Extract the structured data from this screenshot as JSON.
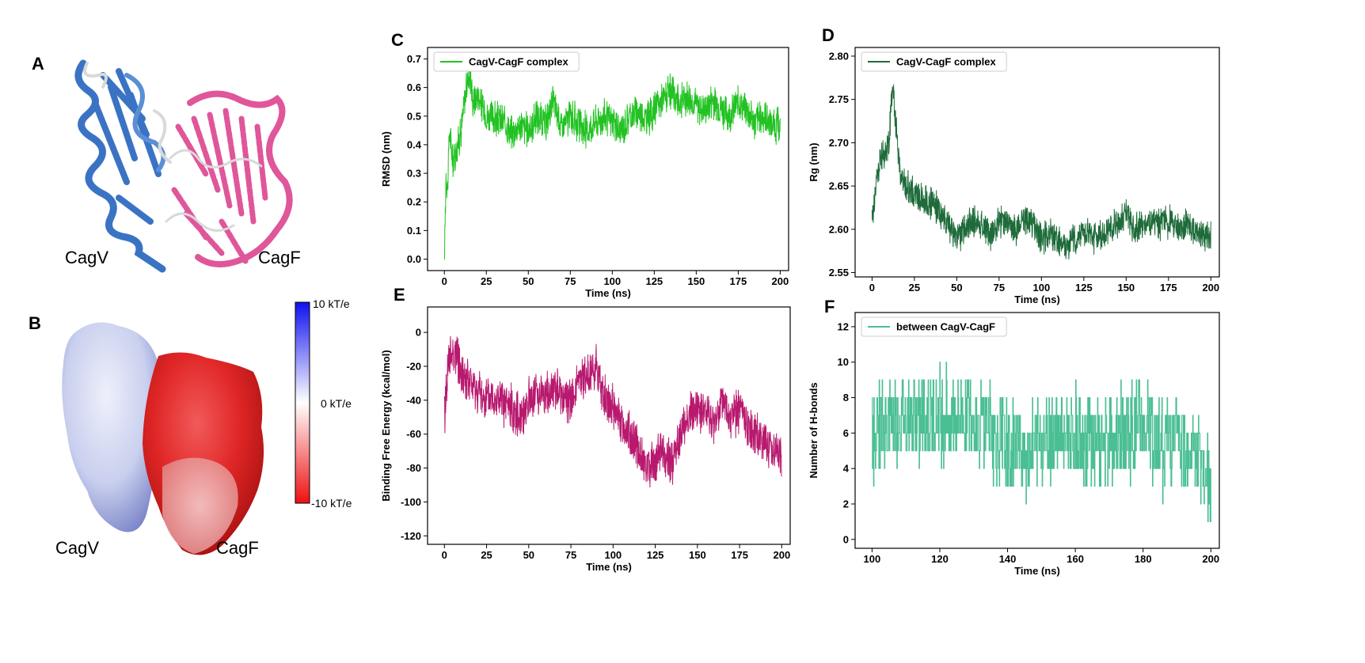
{
  "panel_labels": {
    "a": "A",
    "b": "B",
    "c": "C",
    "d": "D",
    "e": "E",
    "f": "F"
  },
  "structure_a": {
    "left_label": "CagV",
    "right_label": "CagF",
    "colors": {
      "cagv": "#3b73c4",
      "cagf": "#e0569a",
      "coil": "#d9d9d9"
    }
  },
  "structure_b": {
    "left_label": "CagV",
    "right_label": "CagF"
  },
  "colorbar": {
    "top": "10 kT/e",
    "mid": "0 kT/e",
    "bottom": "-10 kT/e",
    "colors": [
      "#1010ee",
      "#ffffff",
      "#ee1010"
    ]
  },
  "chart_data": [
    {
      "id": "C",
      "type": "line",
      "color": "#22c222",
      "legend": "CagV-CagF complex",
      "xlabel": "Time (ns)",
      "ylabel": "RMSD (nm)",
      "xlim": [
        -10,
        205
      ],
      "ylim": [
        -0.04,
        0.74
      ],
      "xticks": [
        0,
        25,
        50,
        75,
        100,
        125,
        150,
        175,
        200
      ],
      "yticks": [
        0.0,
        0.1,
        0.2,
        0.3,
        0.4,
        0.5,
        0.6,
        0.7
      ],
      "ytick_decimals": 1,
      "x": [
        0,
        0.5,
        1,
        2,
        3,
        5,
        8,
        10,
        13,
        15,
        17,
        20,
        25,
        30,
        35,
        40,
        45,
        50,
        55,
        60,
        65,
        70,
        75,
        80,
        85,
        90,
        95,
        100,
        105,
        110,
        115,
        120,
        125,
        130,
        135,
        140,
        145,
        150,
        155,
        160,
        165,
        170,
        175,
        180,
        185,
        190,
        195,
        200
      ],
      "y": [
        0.0,
        0.15,
        0.3,
        0.25,
        0.45,
        0.35,
        0.4,
        0.45,
        0.6,
        0.66,
        0.55,
        0.57,
        0.5,
        0.49,
        0.48,
        0.44,
        0.47,
        0.45,
        0.5,
        0.47,
        0.55,
        0.46,
        0.5,
        0.47,
        0.45,
        0.48,
        0.5,
        0.48,
        0.44,
        0.5,
        0.52,
        0.49,
        0.52,
        0.56,
        0.58,
        0.55,
        0.57,
        0.54,
        0.52,
        0.56,
        0.53,
        0.5,
        0.55,
        0.52,
        0.48,
        0.5,
        0.47,
        0.46
      ],
      "noise": 0.06,
      "samples": 1400
    },
    {
      "id": "D",
      "type": "line",
      "color": "#1e6b3a",
      "legend": "CagV-CagF complex",
      "xlabel": "Time (ns)",
      "ylabel": "Rg (nm)",
      "xlim": [
        -10,
        205
      ],
      "ylim": [
        2.545,
        2.81
      ],
      "xticks": [
        0,
        25,
        50,
        75,
        100,
        125,
        150,
        175,
        200
      ],
      "yticks": [
        2.55,
        2.6,
        2.65,
        2.7,
        2.75,
        2.8
      ],
      "ytick_decimals": 2,
      "x": [
        0,
        3,
        5,
        8,
        10,
        12,
        14,
        17,
        20,
        25,
        30,
        35,
        40,
        45,
        50,
        55,
        60,
        65,
        70,
        75,
        80,
        85,
        90,
        95,
        100,
        105,
        110,
        115,
        120,
        125,
        130,
        135,
        140,
        145,
        150,
        155,
        160,
        165,
        170,
        175,
        180,
        185,
        190,
        195,
        200
      ],
      "y": [
        2.61,
        2.66,
        2.68,
        2.69,
        2.7,
        2.77,
        2.72,
        2.66,
        2.65,
        2.64,
        2.635,
        2.63,
        2.62,
        2.605,
        2.59,
        2.6,
        2.61,
        2.605,
        2.595,
        2.61,
        2.605,
        2.6,
        2.615,
        2.605,
        2.59,
        2.595,
        2.585,
        2.58,
        2.59,
        2.6,
        2.59,
        2.595,
        2.6,
        2.605,
        2.62,
        2.6,
        2.605,
        2.61,
        2.605,
        2.61,
        2.6,
        2.605,
        2.6,
        2.595,
        2.59
      ],
      "noise": 0.018,
      "samples": 1400
    },
    {
      "id": "E",
      "type": "line",
      "color": "#b8196e",
      "legend": "",
      "xlabel": "Time (ns)",
      "ylabel": "Binding Free Energy (kcal/mol)",
      "xlim": [
        -10,
        205
      ],
      "ylim": [
        -125,
        15
      ],
      "xticks": [
        0,
        25,
        50,
        75,
        100,
        125,
        150,
        175,
        200
      ],
      "yticks": [
        -120,
        -100,
        -80,
        -60,
        -40,
        -20,
        0
      ],
      "ytick_decimals": 0,
      "x": [
        0,
        2,
        5,
        8,
        10,
        15,
        20,
        25,
        30,
        35,
        40,
        45,
        50,
        55,
        60,
        65,
        70,
        75,
        80,
        85,
        90,
        95,
        100,
        105,
        110,
        115,
        120,
        125,
        130,
        135,
        140,
        145,
        150,
        155,
        160,
        165,
        170,
        175,
        180,
        185,
        190,
        195,
        200
      ],
      "y": [
        -50,
        -20,
        -10,
        -15,
        -25,
        -30,
        -35,
        -40,
        -38,
        -42,
        -45,
        -50,
        -40,
        -35,
        -38,
        -33,
        -38,
        -40,
        -30,
        -25,
        -20,
        -40,
        -45,
        -55,
        -60,
        -70,
        -80,
        -75,
        -70,
        -78,
        -60,
        -50,
        -45,
        -50,
        -55,
        -40,
        -50,
        -45,
        -55,
        -60,
        -65,
        -70,
        -75
      ],
      "noise": 13,
      "samples": 1400
    },
    {
      "id": "F",
      "type": "line",
      "color": "#4bbf94",
      "legend": "between CagV-CagF",
      "xlabel": "Time (ns)",
      "ylabel": "Number of H-bonds",
      "xlim": [
        95,
        202.5
      ],
      "ylim": [
        -0.5,
        12.8
      ],
      "xticks": [
        100,
        120,
        140,
        160,
        180,
        200
      ],
      "yticks": [
        0,
        2,
        4,
        6,
        8,
        10,
        12
      ],
      "ytick_decimals": 0,
      "x": [
        100,
        105,
        110,
        115,
        120,
        125,
        130,
        135,
        136,
        140,
        145,
        150,
        155,
        160,
        165,
        170,
        175,
        180,
        185,
        190,
        195,
        199,
        200
      ],
      "y": [
        6,
        6.5,
        7,
        6.5,
        7,
        7,
        7,
        6.5,
        5.5,
        5,
        5,
        5.5,
        6,
        6,
        5.5,
        5.5,
        6,
        6,
        5.5,
        5.5,
        5,
        3.5,
        3
      ],
      "noise": 2.6,
      "samples": 900,
      "step": true,
      "integer": true,
      "ymin_clip": 0
    }
  ]
}
